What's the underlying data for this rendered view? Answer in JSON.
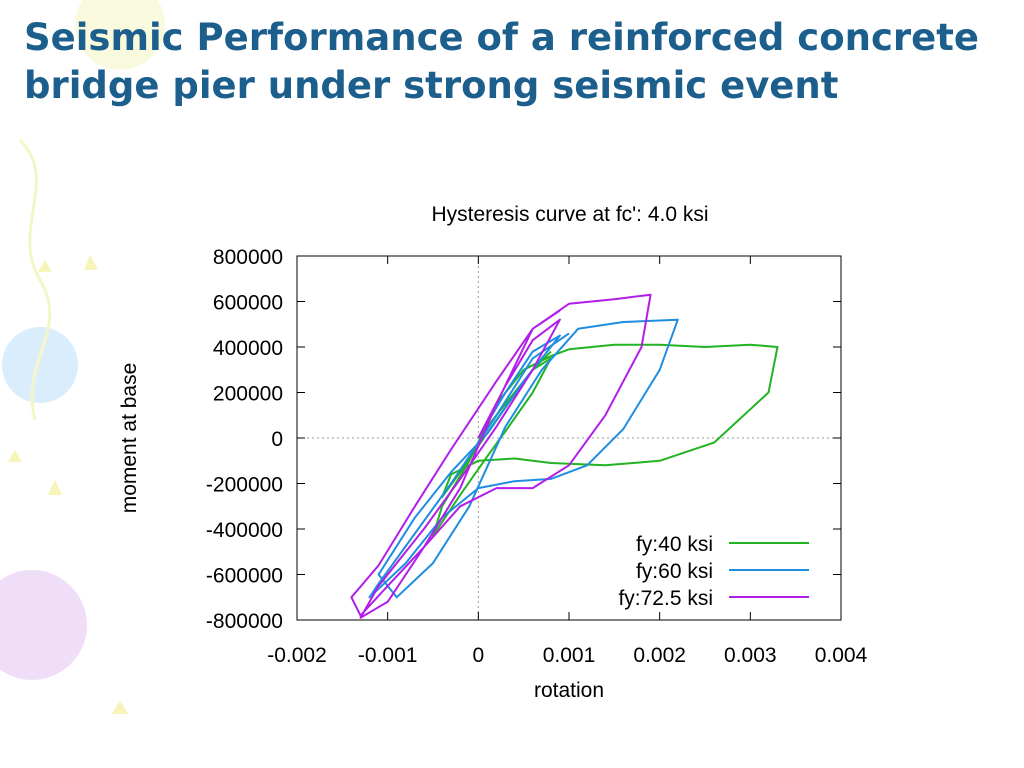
{
  "slide": {
    "title": "Seismic Performance of a reinforced concrete bridge pier under strong seismic event",
    "background_decor": "pastel balloons"
  },
  "colors": {
    "title": "#1d5f8c",
    "fy40": "#22b422",
    "fy60": "#1e8ee0",
    "fy72_5": "#b21ee8"
  },
  "chart_data": {
    "type": "line",
    "title": "Hysteresis curve at fc': 4.0 ksi",
    "xlabel": "rotation",
    "ylabel": "moment at base",
    "xlim": [
      -0.002,
      0.004
    ],
    "ylim": [
      -800000,
      800000
    ],
    "xticks": [
      -0.002,
      -0.001,
      0,
      0.001,
      0.002,
      0.003,
      0.004
    ],
    "xtick_labels": [
      "-0.002",
      "-0.001",
      "0",
      "0.001",
      "0.002",
      "0.003",
      "0.004"
    ],
    "yticks": [
      800000,
      600000,
      400000,
      200000,
      0,
      -200000,
      -400000,
      -600000,
      -800000
    ],
    "ytick_labels": [
      "800000",
      "600000",
      "400000",
      "200000",
      "0",
      "-200000",
      "-400000",
      "-600000",
      "-800000"
    ],
    "zero_lines": true,
    "legend_position": "bottom-right",
    "series": [
      {
        "name": "fy:40 ksi",
        "color_key": "fy40",
        "x": [
          0,
          0.0003,
          0.0006,
          0.0008,
          0.0006,
          0.0003,
          0.0001,
          -0.0002,
          -0.0005,
          -0.0004,
          -0.0001,
          0.0002,
          0.0005,
          0.0008,
          0.001,
          0.0015,
          0.002,
          0.0025,
          0.003,
          0.0033,
          0.0032,
          0.0026,
          0.002,
          0.0014,
          0.0008,
          0.0004,
          0.0,
          -0.0003,
          -0.0004,
          -0.0002,
          0.0002,
          0.0006,
          0.0008
        ],
        "y": [
          0,
          150000,
          300000,
          350000,
          200000,
          30000,
          -80000,
          -250000,
          -430000,
          -300000,
          -100000,
          150000,
          300000,
          360000,
          390000,
          410000,
          410000,
          400000,
          410000,
          400000,
          200000,
          -20000,
          -100000,
          -120000,
          -110000,
          -90000,
          -100000,
          -160000,
          -260000,
          -150000,
          80000,
          300000,
          380000
        ]
      },
      {
        "name": "fy:60 ksi",
        "color_key": "fy60",
        "x": [
          0,
          0.0003,
          0.0006,
          0.0009,
          0.0005,
          0.0001,
          -0.0003,
          -0.0007,
          -0.0011,
          -0.0009,
          -0.0005,
          -0.0001,
          0.0003,
          0.0007,
          0.0011,
          0.0016,
          0.0022,
          0.002,
          0.0016,
          0.0012,
          0.0008,
          0.0004,
          0.0,
          -0.0004,
          -0.0008,
          -0.0012,
          -0.0011,
          -0.0007,
          -0.0003,
          0.0002,
          0.0006,
          0.001
        ],
        "y": [
          0,
          200000,
          380000,
          450000,
          250000,
          20000,
          -150000,
          -350000,
          -600000,
          -700000,
          -550000,
          -300000,
          50000,
          300000,
          480000,
          510000,
          520000,
          300000,
          40000,
          -120000,
          -180000,
          -190000,
          -220000,
          -350000,
          -550000,
          -700000,
          -640000,
          -420000,
          -200000,
          100000,
          350000,
          460000
        ]
      },
      {
        "name": "fy:72.5 ksi",
        "color_key": "fy72_5",
        "x": [
          0,
          0.0003,
          0.0006,
          0.0009,
          0.0006,
          0.0002,
          -0.0002,
          -0.0006,
          -0.0011,
          -0.0013,
          -0.001,
          -0.0006,
          -0.0002,
          0.0002,
          0.0006,
          0.001,
          0.0015,
          0.0019,
          0.0018,
          0.0014,
          0.001,
          0.0006,
          0.0002,
          -0.0002,
          -0.0006,
          -0.001,
          -0.0013,
          -0.0014,
          -0.0011,
          -0.0007,
          -0.0003,
          0.0002,
          0.0006,
          0.0009
        ],
        "y": [
          0,
          230000,
          430000,
          520000,
          300000,
          50000,
          -180000,
          -400000,
          -650000,
          -790000,
          -720000,
          -480000,
          -220000,
          150000,
          480000,
          590000,
          610000,
          630000,
          400000,
          100000,
          -120000,
          -220000,
          -220000,
          -300000,
          -480000,
          -650000,
          -780000,
          -700000,
          -560000,
          -300000,
          -50000,
          250000,
          480000,
          560000
        ]
      }
    ]
  }
}
